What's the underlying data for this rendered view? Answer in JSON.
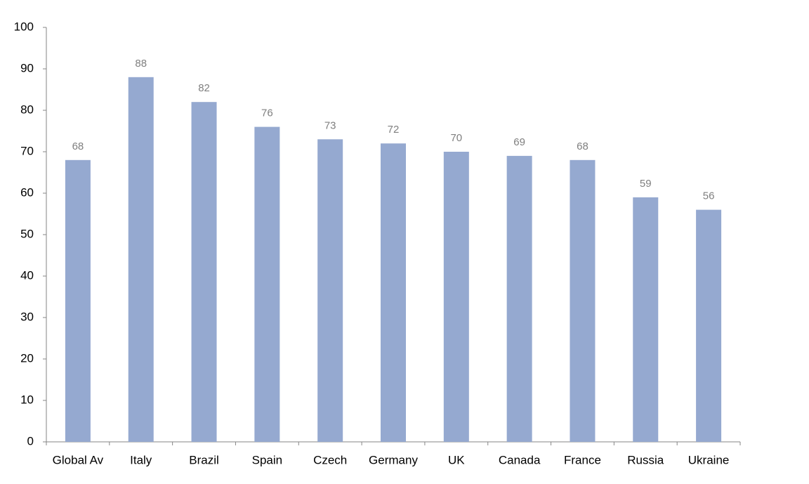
{
  "chart_data": {
    "type": "bar",
    "categories": [
      "Global Av",
      "Italy",
      "Brazil",
      "Spain",
      "Czech",
      "Germany",
      "UK",
      "Canada",
      "France",
      "Russia",
      "Ukraine"
    ],
    "values": [
      68,
      88,
      82,
      76,
      73,
      72,
      70,
      69,
      68,
      59,
      56
    ],
    "color": "#95a9d0",
    "ylim": [
      0,
      100
    ],
    "yticks": [
      0,
      10,
      20,
      30,
      40,
      50,
      60,
      70,
      80,
      90,
      100
    ],
    "grid": false
  }
}
